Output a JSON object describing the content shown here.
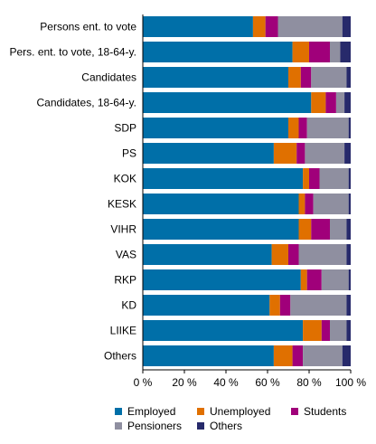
{
  "chart_data": {
    "type": "bar",
    "orientation": "horizontal",
    "stacked": true,
    "title": "",
    "xlabel": "",
    "ylabel": "",
    "xlim": [
      0,
      100
    ],
    "x_ticks": [
      "0 %",
      "20 %",
      "40 %",
      "60 %",
      "80 %",
      "100 %"
    ],
    "grid": false,
    "legend_position": "bottom",
    "categories": [
      "Persons ent. to vote",
      "Pers. ent. to vote, 18-64-y.",
      "Candidates",
      "Candidates, 18-64-y.",
      "SDP",
      "PS",
      "KOK",
      "KESK",
      "VIHR",
      "VAS",
      "RKP",
      "KD",
      "LIIKE",
      "Others"
    ],
    "series": [
      {
        "name": "Employed",
        "color": "#006fa8",
        "values": [
          53,
          72,
          70,
          81,
          70,
          63,
          77,
          75,
          75,
          62,
          76,
          61,
          77,
          63
        ]
      },
      {
        "name": "Unemployed",
        "color": "#e07000",
        "values": [
          6,
          8,
          6,
          7,
          5,
          11,
          3,
          3,
          6,
          8,
          3,
          5,
          9,
          9
        ]
      },
      {
        "name": "Students",
        "color": "#a0007a",
        "values": [
          6,
          10,
          5,
          5,
          4,
          4,
          5,
          4,
          9,
          5,
          7,
          5,
          4,
          5
        ]
      },
      {
        "name": "Pensioners",
        "color": "#8f8fa0",
        "values": [
          31,
          5,
          17,
          4,
          20,
          19,
          14,
          17,
          8,
          23,
          13,
          27,
          8,
          19
        ]
      },
      {
        "name": "Others",
        "color": "#272a6b",
        "values": [
          4,
          5,
          2,
          3,
          1,
          3,
          1,
          1,
          2,
          2,
          1,
          2,
          2,
          4
        ]
      }
    ]
  }
}
